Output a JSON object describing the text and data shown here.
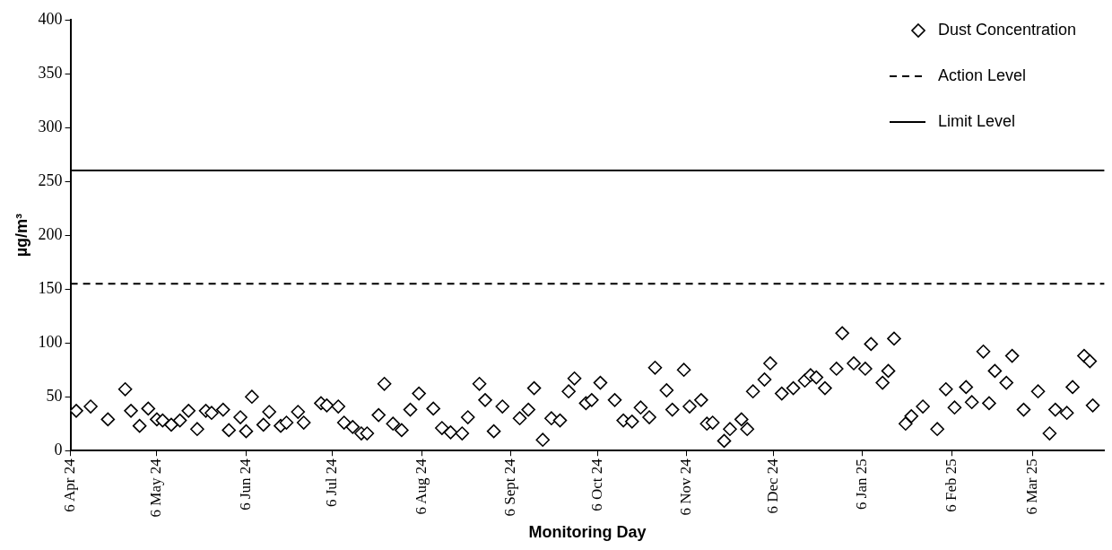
{
  "chart_data": {
    "type": "scatter",
    "xlabel": "Monitoring Day",
    "ylabel": "µg/m³",
    "legend": "top right",
    "marker": "diamond",
    "grid": false,
    "xlim": [
      "2024-04-06",
      "2025-03-31"
    ],
    "xticks": [
      {
        "value": "2024-04-06",
        "label": "6 Apr 24"
      },
      {
        "value": "2024-05-06",
        "label": "6 May 24"
      },
      {
        "value": "2024-06-06",
        "label": "6 Jun 24"
      },
      {
        "value": "2024-07-06",
        "label": "6 Jul 24"
      },
      {
        "value": "2024-08-06",
        "label": "6 Aug 24"
      },
      {
        "value": "2024-09-06",
        "label": "6 Sept 24"
      },
      {
        "value": "2024-10-06",
        "label": "6 Oct 24"
      },
      {
        "value": "2024-11-06",
        "label": "6 Nov 24"
      },
      {
        "value": "2024-12-06",
        "label": "6 Dec 24"
      },
      {
        "value": "2025-01-06",
        "label": "6 Jan 25"
      },
      {
        "value": "2025-02-06",
        "label": "6 Feb 25"
      },
      {
        "value": "2025-03-06",
        "label": "6 Mar 25"
      }
    ],
    "ylim": [
      0,
      400
    ],
    "yticks": [
      0,
      50,
      100,
      150,
      200,
      250,
      300,
      350,
      400
    ],
    "series": [
      {
        "name": "Dust Concentration",
        "color": "#000000",
        "x": [
          "2024-04-08",
          "2024-04-13",
          "2024-04-19",
          "2024-04-25",
          "2024-04-27",
          "2024-04-30",
          "2024-05-03",
          "2024-05-06",
          "2024-05-08",
          "2024-05-11",
          "2024-05-14",
          "2024-05-17",
          "2024-05-20",
          "2024-05-23",
          "2024-05-25",
          "2024-05-29",
          "2024-05-31",
          "2024-06-04",
          "2024-06-06",
          "2024-06-08",
          "2024-06-12",
          "2024-06-14",
          "2024-06-18",
          "2024-06-20",
          "2024-06-24",
          "2024-06-26",
          "2024-07-02",
          "2024-07-04",
          "2024-07-08",
          "2024-07-10",
          "2024-07-13",
          "2024-07-16",
          "2024-07-18",
          "2024-07-22",
          "2024-07-24",
          "2024-07-27",
          "2024-07-30",
          "2024-08-02",
          "2024-08-05",
          "2024-08-10",
          "2024-08-13",
          "2024-08-16",
          "2024-08-20",
          "2024-08-22",
          "2024-08-26",
          "2024-08-28",
          "2024-08-31",
          "2024-09-03",
          "2024-09-09",
          "2024-09-12",
          "2024-09-14",
          "2024-09-17",
          "2024-09-20",
          "2024-09-23",
          "2024-09-26",
          "2024-09-28",
          "2024-10-02",
          "2024-10-04",
          "2024-10-07",
          "2024-10-12",
          "2024-10-15",
          "2024-10-18",
          "2024-10-21",
          "2024-10-24",
          "2024-10-26",
          "2024-10-30",
          "2024-11-01",
          "2024-11-05",
          "2024-11-07",
          "2024-11-11",
          "2024-11-13",
          "2024-11-15",
          "2024-11-19",
          "2024-11-21",
          "2024-11-25",
          "2024-11-27",
          "2024-11-29",
          "2024-12-03",
          "2024-12-05",
          "2024-12-09",
          "2024-12-13",
          "2024-12-17",
          "2024-12-19",
          "2024-12-21",
          "2024-12-24",
          "2024-12-28",
          "2024-12-30",
          "2025-01-03",
          "2025-01-07",
          "2025-01-09",
          "2025-01-13",
          "2025-01-15",
          "2025-01-17",
          "2025-01-21",
          "2025-01-23",
          "2025-01-27",
          "2025-02-01",
          "2025-02-04",
          "2025-02-07",
          "2025-02-11",
          "2025-02-13",
          "2025-02-17",
          "2025-02-19",
          "2025-02-21",
          "2025-02-25",
          "2025-02-27",
          "2025-03-03",
          "2025-03-08",
          "2025-03-12",
          "2025-03-14",
          "2025-03-18",
          "2025-03-20",
          "2025-03-24",
          "2025-03-26",
          "2025-03-27"
        ],
        "values": [
          37,
          41,
          29,
          57,
          37,
          23,
          39,
          29,
          28,
          24,
          28,
          37,
          20,
          37,
          35,
          38,
          19,
          31,
          18,
          50,
          24,
          36,
          23,
          26,
          36,
          26,
          44,
          42,
          41,
          26,
          22,
          16,
          16,
          33,
          62,
          25,
          19,
          38,
          53,
          39,
          21,
          17,
          16,
          31,
          62,
          47,
          18,
          41,
          30,
          38,
          58,
          10,
          30,
          28,
          55,
          67,
          44,
          47,
          63,
          47,
          28,
          27,
          40,
          31,
          77,
          56,
          38,
          75,
          41,
          47,
          25,
          26,
          9,
          20,
          29,
          20,
          55,
          66,
          81,
          53,
          58,
          65,
          70,
          68,
          58,
          76,
          109,
          81,
          76,
          99,
          63,
          74,
          104,
          25,
          32,
          41,
          20,
          57,
          40,
          59,
          45,
          92,
          44,
          74,
          63,
          88,
          38,
          55,
          16,
          38,
          35,
          59,
          88,
          83,
          42
        ]
      }
    ],
    "ref_lines": [
      {
        "axis": "y",
        "value": 155,
        "label": "Action Level",
        "line_style": "dashed",
        "color": "#000000"
      },
      {
        "axis": "y",
        "value": 260,
        "label": "Limit Level",
        "line_style": "solid",
        "color": "#000000"
      }
    ]
  }
}
